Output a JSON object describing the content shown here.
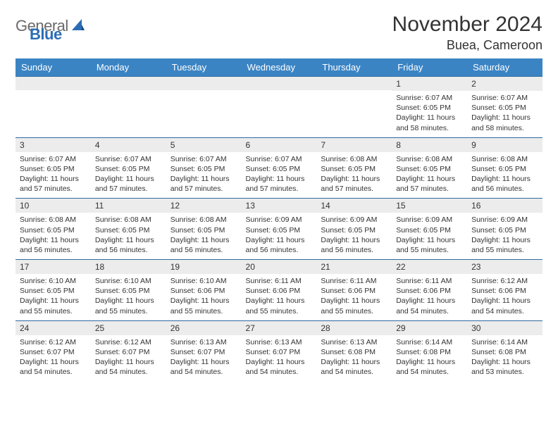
{
  "logo": {
    "text1": "General",
    "text2": "Blue"
  },
  "title": "November 2024",
  "location": "Buea, Cameroon",
  "colors": {
    "header_bg": "#3b84c4",
    "header_text": "#ffffff",
    "daynum_bg": "#ececec",
    "rule": "#2f6aa3",
    "body_text": "#333333",
    "logo_gray": "#6a6a6a",
    "logo_blue": "#2a6db5"
  },
  "weekdays": [
    "Sunday",
    "Monday",
    "Tuesday",
    "Wednesday",
    "Thursday",
    "Friday",
    "Saturday"
  ],
  "weeks": [
    [
      {
        "blank": true
      },
      {
        "blank": true
      },
      {
        "blank": true
      },
      {
        "blank": true
      },
      {
        "blank": true
      },
      {
        "n": "1",
        "sr": "Sunrise: 6:07 AM",
        "ss": "Sunset: 6:05 PM",
        "dl1": "Daylight: 11 hours",
        "dl2": "and 58 minutes."
      },
      {
        "n": "2",
        "sr": "Sunrise: 6:07 AM",
        "ss": "Sunset: 6:05 PM",
        "dl1": "Daylight: 11 hours",
        "dl2": "and 58 minutes."
      }
    ],
    [
      {
        "n": "3",
        "sr": "Sunrise: 6:07 AM",
        "ss": "Sunset: 6:05 PM",
        "dl1": "Daylight: 11 hours",
        "dl2": "and 57 minutes."
      },
      {
        "n": "4",
        "sr": "Sunrise: 6:07 AM",
        "ss": "Sunset: 6:05 PM",
        "dl1": "Daylight: 11 hours",
        "dl2": "and 57 minutes."
      },
      {
        "n": "5",
        "sr": "Sunrise: 6:07 AM",
        "ss": "Sunset: 6:05 PM",
        "dl1": "Daylight: 11 hours",
        "dl2": "and 57 minutes."
      },
      {
        "n": "6",
        "sr": "Sunrise: 6:07 AM",
        "ss": "Sunset: 6:05 PM",
        "dl1": "Daylight: 11 hours",
        "dl2": "and 57 minutes."
      },
      {
        "n": "7",
        "sr": "Sunrise: 6:08 AM",
        "ss": "Sunset: 6:05 PM",
        "dl1": "Daylight: 11 hours",
        "dl2": "and 57 minutes."
      },
      {
        "n": "8",
        "sr": "Sunrise: 6:08 AM",
        "ss": "Sunset: 6:05 PM",
        "dl1": "Daylight: 11 hours",
        "dl2": "and 57 minutes."
      },
      {
        "n": "9",
        "sr": "Sunrise: 6:08 AM",
        "ss": "Sunset: 6:05 PM",
        "dl1": "Daylight: 11 hours",
        "dl2": "and 56 minutes."
      }
    ],
    [
      {
        "n": "10",
        "sr": "Sunrise: 6:08 AM",
        "ss": "Sunset: 6:05 PM",
        "dl1": "Daylight: 11 hours",
        "dl2": "and 56 minutes."
      },
      {
        "n": "11",
        "sr": "Sunrise: 6:08 AM",
        "ss": "Sunset: 6:05 PM",
        "dl1": "Daylight: 11 hours",
        "dl2": "and 56 minutes."
      },
      {
        "n": "12",
        "sr": "Sunrise: 6:08 AM",
        "ss": "Sunset: 6:05 PM",
        "dl1": "Daylight: 11 hours",
        "dl2": "and 56 minutes."
      },
      {
        "n": "13",
        "sr": "Sunrise: 6:09 AM",
        "ss": "Sunset: 6:05 PM",
        "dl1": "Daylight: 11 hours",
        "dl2": "and 56 minutes."
      },
      {
        "n": "14",
        "sr": "Sunrise: 6:09 AM",
        "ss": "Sunset: 6:05 PM",
        "dl1": "Daylight: 11 hours",
        "dl2": "and 56 minutes."
      },
      {
        "n": "15",
        "sr": "Sunrise: 6:09 AM",
        "ss": "Sunset: 6:05 PM",
        "dl1": "Daylight: 11 hours",
        "dl2": "and 55 minutes."
      },
      {
        "n": "16",
        "sr": "Sunrise: 6:09 AM",
        "ss": "Sunset: 6:05 PM",
        "dl1": "Daylight: 11 hours",
        "dl2": "and 55 minutes."
      }
    ],
    [
      {
        "n": "17",
        "sr": "Sunrise: 6:10 AM",
        "ss": "Sunset: 6:05 PM",
        "dl1": "Daylight: 11 hours",
        "dl2": "and 55 minutes."
      },
      {
        "n": "18",
        "sr": "Sunrise: 6:10 AM",
        "ss": "Sunset: 6:05 PM",
        "dl1": "Daylight: 11 hours",
        "dl2": "and 55 minutes."
      },
      {
        "n": "19",
        "sr": "Sunrise: 6:10 AM",
        "ss": "Sunset: 6:06 PM",
        "dl1": "Daylight: 11 hours",
        "dl2": "and 55 minutes."
      },
      {
        "n": "20",
        "sr": "Sunrise: 6:11 AM",
        "ss": "Sunset: 6:06 PM",
        "dl1": "Daylight: 11 hours",
        "dl2": "and 55 minutes."
      },
      {
        "n": "21",
        "sr": "Sunrise: 6:11 AM",
        "ss": "Sunset: 6:06 PM",
        "dl1": "Daylight: 11 hours",
        "dl2": "and 55 minutes."
      },
      {
        "n": "22",
        "sr": "Sunrise: 6:11 AM",
        "ss": "Sunset: 6:06 PM",
        "dl1": "Daylight: 11 hours",
        "dl2": "and 54 minutes."
      },
      {
        "n": "23",
        "sr": "Sunrise: 6:12 AM",
        "ss": "Sunset: 6:06 PM",
        "dl1": "Daylight: 11 hours",
        "dl2": "and 54 minutes."
      }
    ],
    [
      {
        "n": "24",
        "sr": "Sunrise: 6:12 AM",
        "ss": "Sunset: 6:07 PM",
        "dl1": "Daylight: 11 hours",
        "dl2": "and 54 minutes."
      },
      {
        "n": "25",
        "sr": "Sunrise: 6:12 AM",
        "ss": "Sunset: 6:07 PM",
        "dl1": "Daylight: 11 hours",
        "dl2": "and 54 minutes."
      },
      {
        "n": "26",
        "sr": "Sunrise: 6:13 AM",
        "ss": "Sunset: 6:07 PM",
        "dl1": "Daylight: 11 hours",
        "dl2": "and 54 minutes."
      },
      {
        "n": "27",
        "sr": "Sunrise: 6:13 AM",
        "ss": "Sunset: 6:07 PM",
        "dl1": "Daylight: 11 hours",
        "dl2": "and 54 minutes."
      },
      {
        "n": "28",
        "sr": "Sunrise: 6:13 AM",
        "ss": "Sunset: 6:08 PM",
        "dl1": "Daylight: 11 hours",
        "dl2": "and 54 minutes."
      },
      {
        "n": "29",
        "sr": "Sunrise: 6:14 AM",
        "ss": "Sunset: 6:08 PM",
        "dl1": "Daylight: 11 hours",
        "dl2": "and 54 minutes."
      },
      {
        "n": "30",
        "sr": "Sunrise: 6:14 AM",
        "ss": "Sunset: 6:08 PM",
        "dl1": "Daylight: 11 hours",
        "dl2": "and 53 minutes."
      }
    ]
  ]
}
